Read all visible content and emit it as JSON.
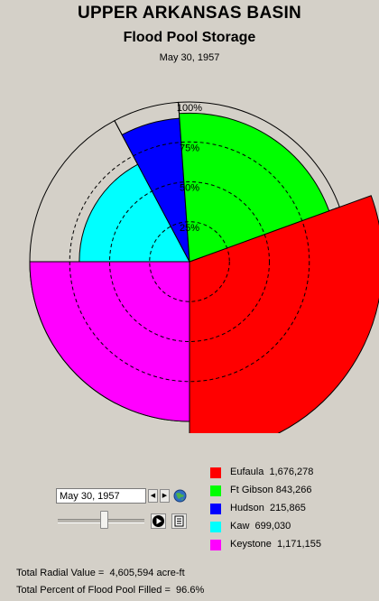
{
  "title": "UPPER ARKANSAS BASIN",
  "subtitle": "Flood Pool Storage",
  "date": "May 30, 1957",
  "chart_data": {
    "type": "polar-area",
    "date": "May 30, 1957",
    "radial_ticks": [
      "25%",
      "50%",
      "75%",
      "100%"
    ],
    "grid": true,
    "legend_position": "bottom-right",
    "units": "acre-ft",
    "series": [
      {
        "name": "Eufaula",
        "value": "1,676,278",
        "percent_full": 121,
        "start_deg": -20,
        "end_deg": 90,
        "color": "#ff0000"
      },
      {
        "name": "Keystone",
        "value": "1,171,155",
        "percent_full": 100,
        "start_deg": 90,
        "end_deg": 180,
        "color": "#ff00ff"
      },
      {
        "name": "Kaw",
        "value": "699,030",
        "percent_full": 69,
        "start_deg": 180,
        "end_deg": 242,
        "color": "#00ffff"
      },
      {
        "name": "Hudson",
        "value": "215,865",
        "percent_full": 90,
        "start_deg": 242,
        "end_deg": 266,
        "color": "#0000ff"
      },
      {
        "name": "Ft Gibson",
        "value": "843,266",
        "percent_full": 93,
        "start_deg": 266,
        "end_deg": 340,
        "color": "#00ff00"
      }
    ]
  },
  "legend": [
    {
      "name": "Eufaula",
      "value": "1,676,278",
      "color": "#ff0000"
    },
    {
      "name": "Ft Gibson",
      "value": "843,266",
      "color": "#00ff00"
    },
    {
      "name": "Hudson",
      "value": "215,865",
      "color": "#0000ff"
    },
    {
      "name": "Kaw",
      "value": "699,030",
      "color": "#00ffff"
    },
    {
      "name": "Keystone",
      "value": "1,171,155",
      "color": "#ff00ff"
    }
  ],
  "controls": {
    "date_value": "May 30, 1957",
    "prev_icon": "triangle-left-icon",
    "next_icon": "triangle-right-icon",
    "globe_icon": "globe-icon",
    "play_icon": "play-icon",
    "report_icon": "report-icon",
    "slider_fraction": 0.5
  },
  "totals": {
    "radial_label": "Total Radial Value =",
    "radial_value": "4,605,594 acre-ft",
    "percent_label": "Total Percent of Flood Pool Filled =",
    "percent_value": "96.6%"
  }
}
